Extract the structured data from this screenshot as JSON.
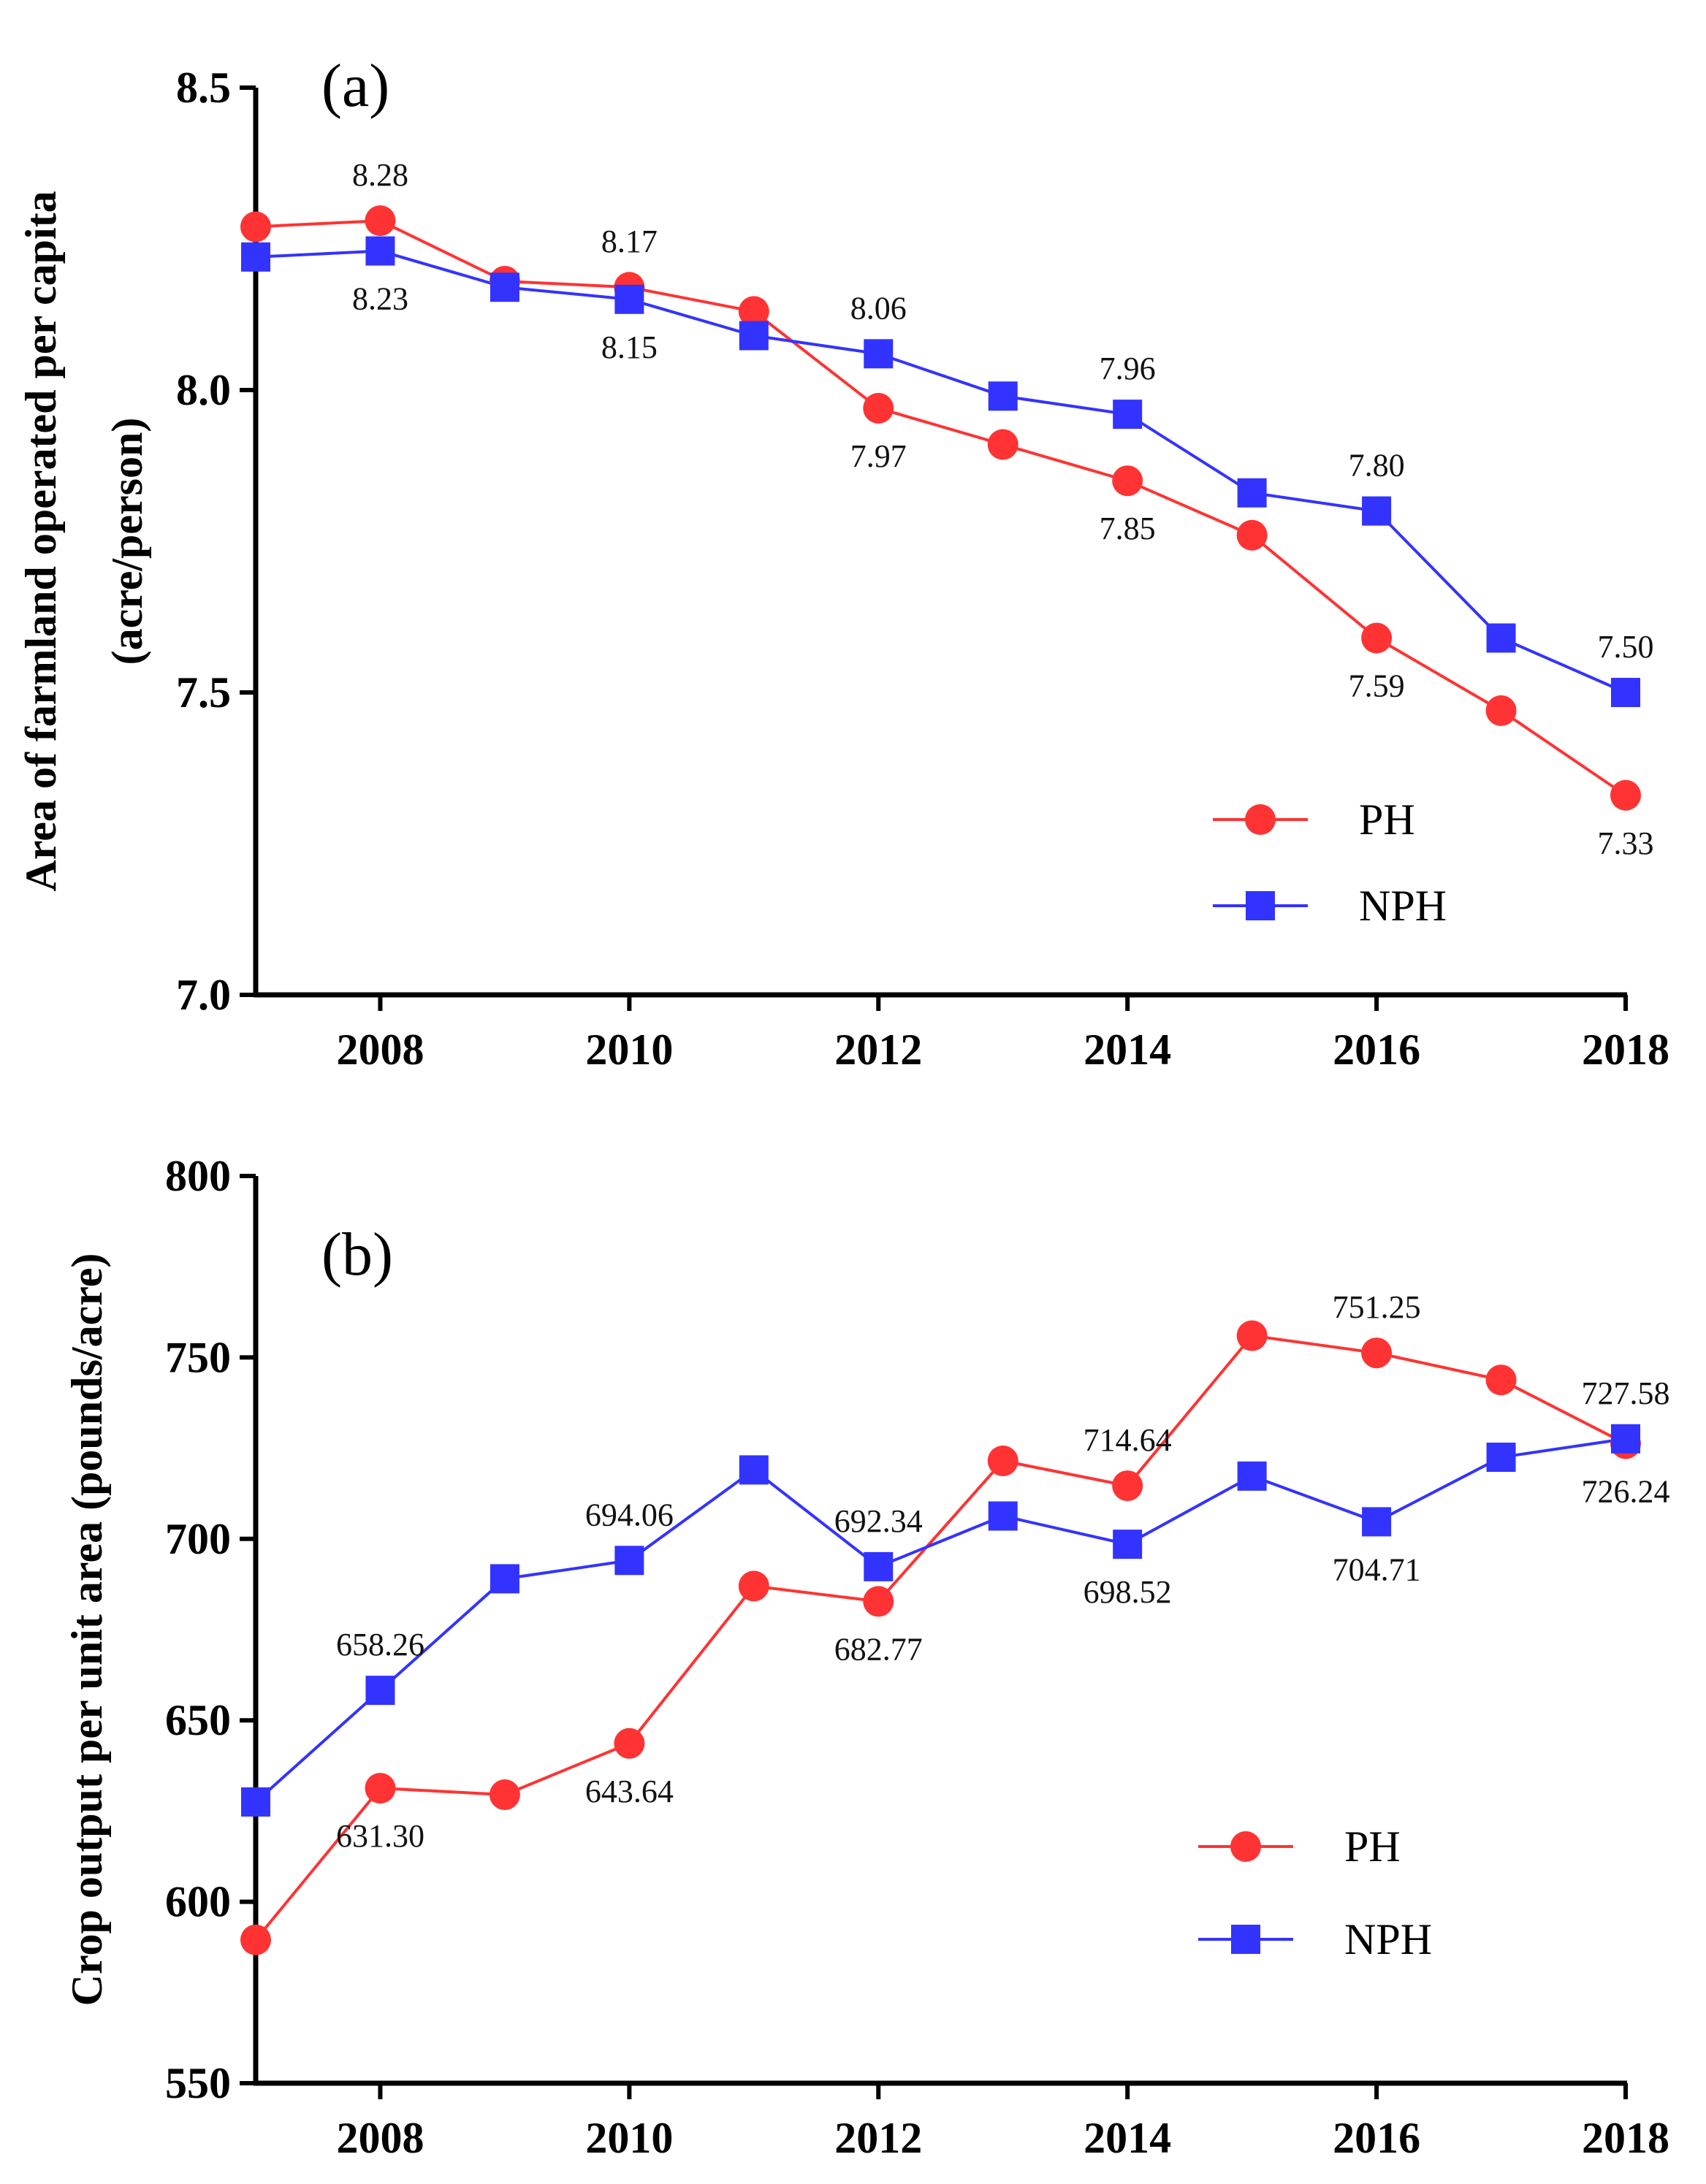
{
  "chart_data": [
    {
      "type": "line",
      "panel_label": "(a)",
      "ylabel": [
        "Area of farmland operated per capita",
        "(acre/person)"
      ],
      "xlabel": "",
      "x": [
        2007,
        2008,
        2009,
        2010,
        2011,
        2012,
        2013,
        2014,
        2015,
        2016,
        2017,
        2018
      ],
      "xlim": [
        2007,
        2018
      ],
      "xticks": [
        "2008",
        "2010",
        "2012",
        "2014",
        "2016",
        "2018"
      ],
      "ylim": [
        7.0,
        8.5
      ],
      "yticks": [
        "7.0",
        "7.5",
        "8.0",
        "8.5"
      ],
      "grid": false,
      "legend_position": "bottom-right",
      "series": [
        {
          "name": "PH",
          "color": "#ff3333",
          "marker": "circle",
          "values": [
            8.27,
            8.28,
            8.18,
            8.17,
            8.13,
            7.97,
            7.91,
            7.85,
            7.76,
            7.59,
            7.47,
            7.33
          ]
        },
        {
          "name": "NPH",
          "color": "#3333ff",
          "marker": "square",
          "values": [
            8.22,
            8.23,
            8.17,
            8.15,
            8.09,
            8.06,
            7.99,
            7.96,
            7.83,
            7.8,
            7.59,
            7.5
          ]
        }
      ],
      "annotations": [
        {
          "text": "8.28",
          "series": 0,
          "index": 1,
          "position": "above"
        },
        {
          "text": "8.23",
          "series": 1,
          "index": 1,
          "position": "below"
        },
        {
          "text": "8.17",
          "series": 0,
          "index": 3,
          "position": "above"
        },
        {
          "text": "8.15",
          "series": 1,
          "index": 3,
          "position": "below"
        },
        {
          "text": "8.06",
          "series": 1,
          "index": 5,
          "position": "above"
        },
        {
          "text": "7.97",
          "series": 0,
          "index": 5,
          "position": "below"
        },
        {
          "text": "7.96",
          "series": 1,
          "index": 7,
          "position": "above"
        },
        {
          "text": "7.85",
          "series": 0,
          "index": 7,
          "position": "below"
        },
        {
          "text": "7.80",
          "series": 1,
          "index": 9,
          "position": "above"
        },
        {
          "text": "7.59",
          "series": 0,
          "index": 9,
          "position": "below"
        },
        {
          "text": "7.50",
          "series": 1,
          "index": 11,
          "position": "above"
        },
        {
          "text": "7.33",
          "series": 0,
          "index": 11,
          "position": "below"
        }
      ]
    },
    {
      "type": "line",
      "panel_label": "(b)",
      "ylabel": [
        "Crop output per unit area (pounds/acre)"
      ],
      "xlabel": "",
      "x": [
        2007,
        2008,
        2009,
        2010,
        2011,
        2012,
        2013,
        2014,
        2015,
        2016,
        2017,
        2018
      ],
      "xlim": [
        2007,
        2018
      ],
      "xticks": [
        "2008",
        "2010",
        "2012",
        "2014",
        "2016",
        "2018"
      ],
      "ylim": [
        550,
        800
      ],
      "yticks": [
        "550",
        "600",
        "650",
        "700",
        "750",
        "800"
      ],
      "grid": false,
      "legend_position": "bottom-right",
      "series": [
        {
          "name": "PH",
          "color": "#ff3333",
          "marker": "circle",
          "values": [
            589.5,
            631.3,
            629.5,
            643.64,
            687.0,
            682.77,
            721.5,
            714.64,
            756.0,
            751.25,
            743.8,
            726.24
          ]
        },
        {
          "name": "NPH",
          "color": "#3333ff",
          "marker": "square",
          "values": [
            627.5,
            658.26,
            689.0,
            694.06,
            719.0,
            692.34,
            706.3,
            698.52,
            717.3,
            704.71,
            722.5,
            727.58
          ]
        }
      ],
      "annotations": [
        {
          "text": "658.26",
          "series": 1,
          "index": 1,
          "position": "above"
        },
        {
          "text": "631.30",
          "series": 0,
          "index": 1,
          "position": "below"
        },
        {
          "text": "694.06",
          "series": 1,
          "index": 3,
          "position": "above"
        },
        {
          "text": "643.64",
          "series": 0,
          "index": 3,
          "position": "below"
        },
        {
          "text": "692.34",
          "series": 1,
          "index": 5,
          "position": "above"
        },
        {
          "text": "682.77",
          "series": 0,
          "index": 5,
          "position": "below"
        },
        {
          "text": "714.64",
          "series": 0,
          "index": 7,
          "position": "above"
        },
        {
          "text": "698.52",
          "series": 1,
          "index": 7,
          "position": "below"
        },
        {
          "text": "751.25",
          "series": 0,
          "index": 9,
          "position": "above"
        },
        {
          "text": "704.71",
          "series": 1,
          "index": 9,
          "position": "below"
        },
        {
          "text": "727.58",
          "series": 1,
          "index": 11,
          "position": "above"
        },
        {
          "text": "726.24",
          "series": 0,
          "index": 11,
          "position": "below"
        }
      ]
    }
  ]
}
